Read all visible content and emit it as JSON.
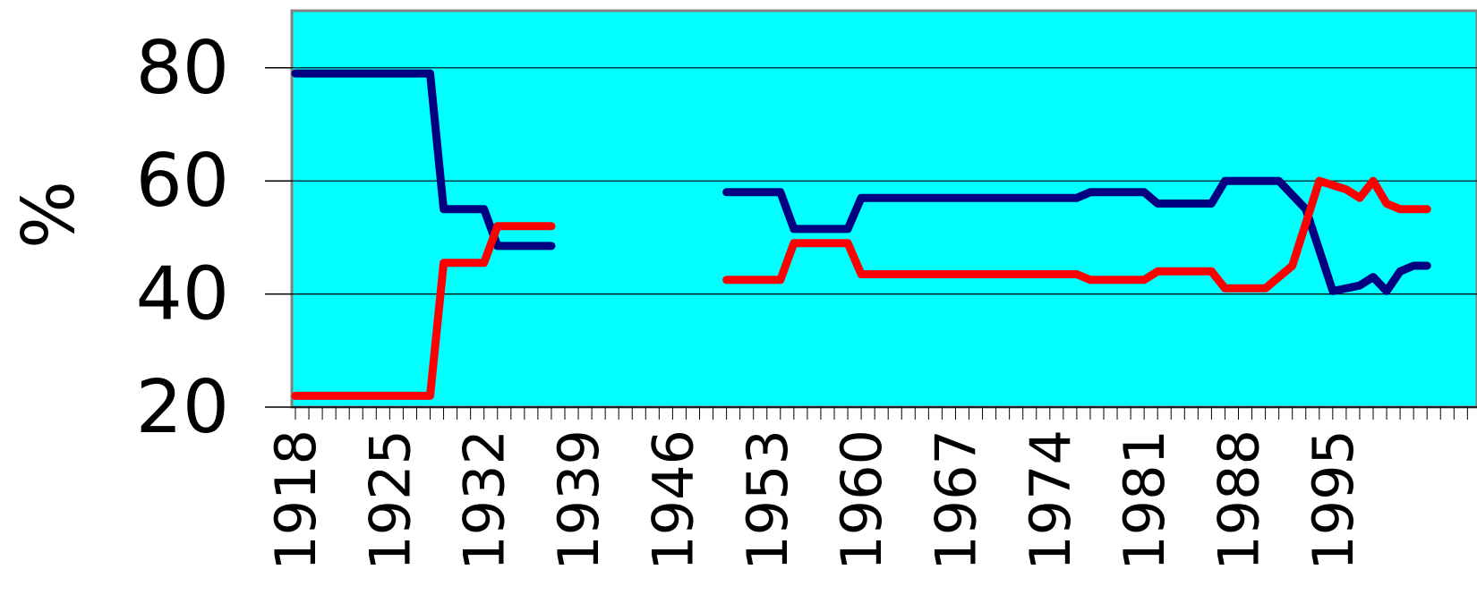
{
  "chart_data": {
    "type": "line",
    "title": "",
    "xlabel": "",
    "ylabel": "%",
    "ylim": [
      20,
      90
    ],
    "xlim": [
      1918,
      2021
    ],
    "yticks": [
      20,
      40,
      60,
      80
    ],
    "xticks": [
      "1918",
      "1925",
      "1932",
      "1939",
      "1946",
      "1953",
      "1960",
      "1967",
      "1974",
      "1981",
      "1988",
      "1995"
    ],
    "grid": "horizontal",
    "legend": "none",
    "background_color": "#00FFFF",
    "series": [
      {
        "color": "#000080",
        "points": [
          [
            1918,
            79
          ],
          [
            1928,
            79
          ],
          [
            1929,
            55
          ],
          [
            1932,
            55
          ],
          [
            1933,
            48.5
          ],
          [
            1937,
            48.5
          ],
          null,
          [
            1950,
            58
          ],
          [
            1954,
            58
          ],
          [
            1955,
            51.5
          ],
          [
            1959,
            51.5
          ],
          [
            1960,
            57
          ],
          [
            1976,
            57
          ],
          [
            1977,
            58
          ],
          [
            1981,
            58
          ],
          [
            1982,
            56
          ],
          [
            1986,
            56
          ],
          [
            1987,
            60
          ],
          [
            1991,
            60
          ],
          [
            1993,
            55
          ],
          [
            1995,
            40.5
          ],
          [
            1997,
            41.5
          ],
          [
            1998,
            43
          ],
          [
            1999,
            40.5
          ],
          [
            2000,
            44
          ],
          [
            2001,
            45
          ],
          [
            2002,
            45
          ]
        ]
      },
      {
        "color": "#FF0000",
        "points": [
          [
            1918,
            22
          ],
          [
            1928,
            22
          ],
          [
            1929,
            45.5
          ],
          [
            1932,
            45.5
          ],
          [
            1933,
            52
          ],
          [
            1937,
            52
          ],
          null,
          [
            1950,
            42.5
          ],
          [
            1954,
            42.5
          ],
          [
            1955,
            49
          ],
          [
            1959,
            49
          ],
          [
            1960,
            43.5
          ],
          [
            1976,
            43.5
          ],
          [
            1977,
            42.5
          ],
          [
            1981,
            42.5
          ],
          [
            1982,
            44
          ],
          [
            1986,
            44
          ],
          [
            1987,
            41
          ],
          [
            1990,
            41
          ],
          [
            1992,
            45
          ],
          [
            1994,
            60
          ],
          [
            1996,
            58.5
          ],
          [
            1997,
            57
          ],
          [
            1998,
            60
          ],
          [
            1999,
            56
          ],
          [
            2000,
            55
          ],
          [
            2002,
            55
          ]
        ]
      }
    ]
  }
}
